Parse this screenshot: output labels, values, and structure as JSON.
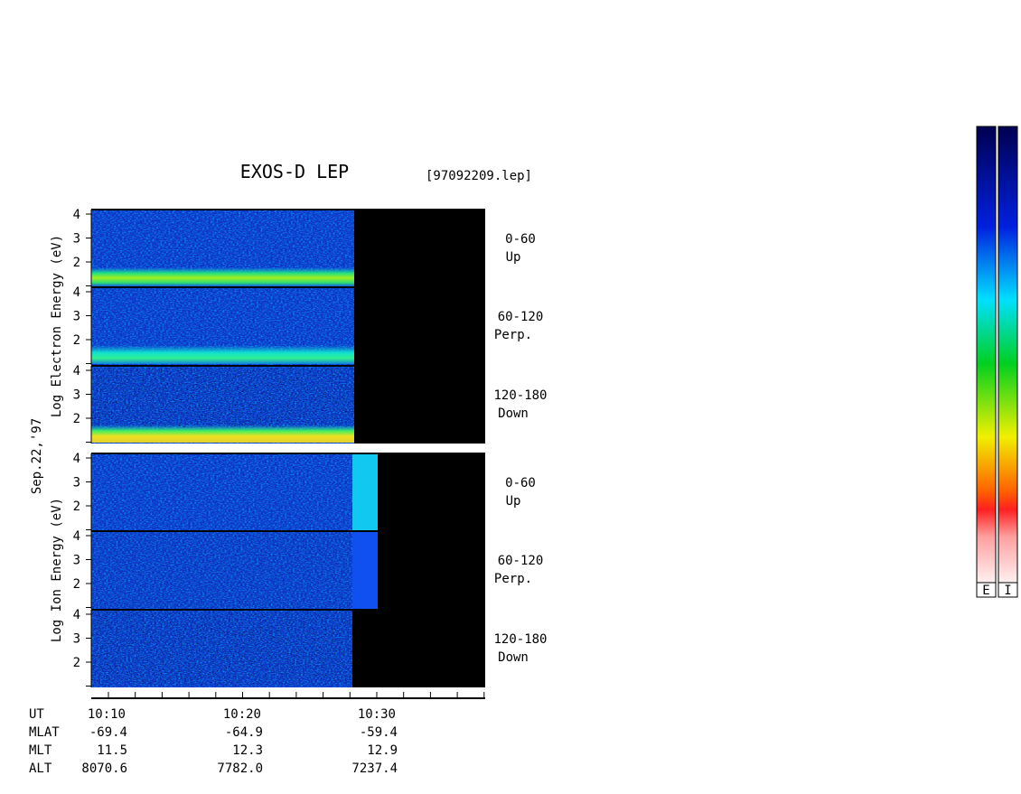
{
  "header": {
    "title": "EXOS-D LEP",
    "file": "[97092209.lep]",
    "date": "Sep.22,'97"
  },
  "electron": {
    "label": "Log Electron Energy (eV)",
    "ticks": [
      "4",
      "3",
      "2"
    ],
    "panels": [
      {
        "angle": "0-60",
        "direction": "Up"
      },
      {
        "angle": "60-120",
        "direction": "Perp."
      },
      {
        "angle": "120-180",
        "direction": "Down"
      }
    ]
  },
  "ion": {
    "label": "Log Ion Energy (eV)",
    "ticks": [
      "4",
      "3",
      "2"
    ],
    "panels": [
      {
        "angle": "0-60",
        "direction": "Up"
      },
      {
        "angle": "60-120",
        "direction": "Perp."
      },
      {
        "angle": "120-180",
        "direction": "Down"
      }
    ]
  },
  "time_axis": {
    "name": "UT",
    "labels": [
      "10:10",
      "10:20",
      "10:30"
    ]
  },
  "ephemeris": [
    [
      "MLAT",
      "-69.4",
      "-64.9",
      "-59.4"
    ],
    [
      "MLT",
      "11.5",
      "12.3",
      "12.9"
    ],
    [
      "ALT",
      "8070.6",
      "7782.0",
      "7237.4"
    ]
  ],
  "color_bars": [
    "E",
    "I"
  ]
}
